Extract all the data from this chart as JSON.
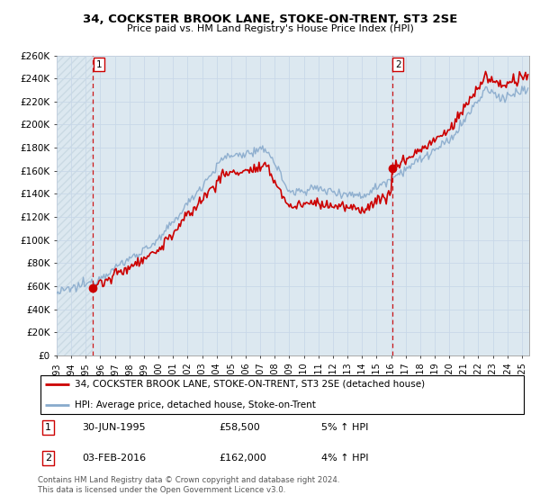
{
  "title": "34, COCKSTER BROOK LANE, STOKE-ON-TRENT, ST3 2SE",
  "subtitle": "Price paid vs. HM Land Registry's House Price Index (HPI)",
  "ylim": [
    0,
    260000
  ],
  "yticks": [
    0,
    20000,
    40000,
    60000,
    80000,
    100000,
    120000,
    140000,
    160000,
    180000,
    200000,
    220000,
    240000,
    260000
  ],
  "ytick_labels": [
    "£0",
    "£20K",
    "£40K",
    "£60K",
    "£80K",
    "£100K",
    "£120K",
    "£140K",
    "£160K",
    "£180K",
    "£200K",
    "£220K",
    "£240K",
    "£260K"
  ],
  "xmin": 1993.0,
  "xmax": 2025.5,
  "purchase1_x": 1995.5,
  "purchase1_y": 58500,
  "purchase1_label": "1",
  "purchase1_date": "30-JUN-1995",
  "purchase1_price": "£58,500",
  "purchase1_hpi": "5% ↑ HPI",
  "purchase2_x": 2016.08,
  "purchase2_y": 162000,
  "purchase2_label": "2",
  "purchase2_date": "03-FEB-2016",
  "purchase2_price": "£162,000",
  "purchase2_hpi": "4% ↑ HPI",
  "line1_color": "#cc0000",
  "line2_color": "#88aacc",
  "vline_color": "#cc0000",
  "grid_color": "#c8d8e8",
  "bg_color": "#dce8f0",
  "hatch_color": "#b8ccd8",
  "legend1_label": "34, COCKSTER BROOK LANE, STOKE-ON-TRENT, ST3 2SE (detached house)",
  "legend2_label": "HPI: Average price, detached house, Stoke-on-Trent",
  "footer": "Contains HM Land Registry data © Crown copyright and database right 2024.\nThis data is licensed under the Open Government Licence v3.0.",
  "xtick_years": [
    1993,
    1994,
    1995,
    1996,
    1997,
    1998,
    1999,
    2000,
    2001,
    2002,
    2003,
    2004,
    2005,
    2006,
    2007,
    2008,
    2009,
    2010,
    2011,
    2012,
    2013,
    2014,
    2015,
    2016,
    2017,
    2018,
    2019,
    2020,
    2021,
    2022,
    2023,
    2024,
    2025
  ]
}
